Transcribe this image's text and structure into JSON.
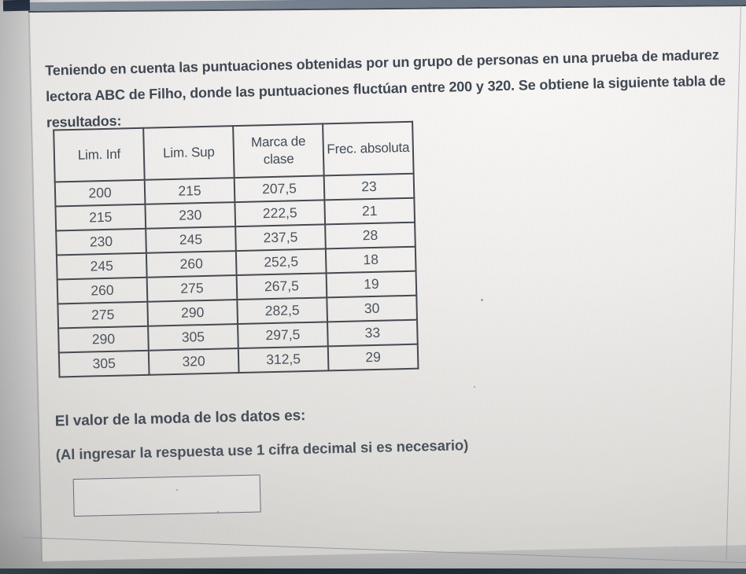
{
  "question": {
    "paragraph": "Teniendo en cuenta las puntuaciones obtenidas por un grupo de personas en una prueba de madurez lectora ABC de Filho, donde las puntuaciones fluctúan entre 200 y 320. Se obtiene la siguiente tabla de resultados:",
    "prompt": "El valor de la moda de los datos es:",
    "format_hint": "(Al ingresar la respuesta use 1 cifra decimal si es necesario)",
    "answer_value": ""
  },
  "table": {
    "headers": [
      "Lim. Inf",
      "Lim. Sup",
      "Marca de clase",
      "Frec. absoluta"
    ],
    "rows": [
      [
        "200",
        "215",
        "207,5",
        "23"
      ],
      [
        "215",
        "230",
        "222,5",
        "21"
      ],
      [
        "230",
        "245",
        "237,5",
        "28"
      ],
      [
        "245",
        "260",
        "252,5",
        "18"
      ],
      [
        "260",
        "275",
        "267,5",
        "19"
      ],
      [
        "275",
        "290",
        "282,5",
        "30"
      ],
      [
        "290",
        "305",
        "297,5",
        "33"
      ],
      [
        "305",
        "320",
        "312,5",
        "29"
      ]
    ]
  },
  "colors": {
    "text": "#3f4752",
    "table-border": "#44484f",
    "topbar-start": "#87919e",
    "topbar-end": "#5f6a78",
    "navy-block": "#263241",
    "bottom-strip": "#15242e",
    "panel-line": "#999da2"
  }
}
